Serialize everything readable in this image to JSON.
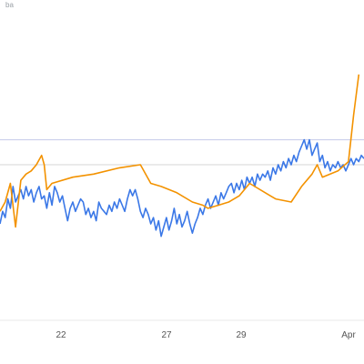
{
  "chart_data": {
    "type": "line",
    "title": "",
    "top_left_fragment": "ba",
    "xlabel": "",
    "ylabel": "",
    "x_tick_labels": [
      "22",
      "27",
      "29",
      "Apr"
    ],
    "grid": true,
    "reference_lines": [
      {
        "color": "#c5cae9",
        "value": 0.58
      },
      {
        "color": "#d6d6d6",
        "value": 0.5
      }
    ],
    "series": [
      {
        "color": "#3b78e7",
        "values": [
          [
            0,
            0.31
          ],
          [
            0.5,
            0.35
          ],
          [
            1,
            0.33
          ],
          [
            1.5,
            0.39
          ],
          [
            2,
            0.36
          ],
          [
            2.5,
            0.43
          ],
          [
            3,
            0.38
          ],
          [
            3.5,
            0.4
          ],
          [
            4,
            0.42
          ],
          [
            4.5,
            0.39
          ],
          [
            5,
            0.43
          ],
          [
            5.5,
            0.4
          ],
          [
            6,
            0.42
          ],
          [
            6.5,
            0.38
          ],
          [
            7,
            0.41
          ],
          [
            7.5,
            0.43
          ],
          [
            8,
            0.39
          ],
          [
            8.5,
            0.4
          ],
          [
            9,
            0.36
          ],
          [
            9.5,
            0.41
          ],
          [
            10,
            0.37
          ],
          [
            10.5,
            0.43
          ],
          [
            11,
            0.41
          ],
          [
            11.5,
            0.38
          ],
          [
            12,
            0.4
          ],
          [
            12.5,
            0.36
          ],
          [
            13,
            0.32
          ],
          [
            13.5,
            0.36
          ],
          [
            14,
            0.38
          ],
          [
            14.5,
            0.35
          ],
          [
            15,
            0.37
          ],
          [
            15.5,
            0.39
          ],
          [
            16,
            0.38
          ],
          [
            16.5,
            0.34
          ],
          [
            17,
            0.36
          ],
          [
            17.5,
            0.33
          ],
          [
            18,
            0.35
          ],
          [
            18.5,
            0.32
          ],
          [
            19,
            0.38
          ],
          [
            19.5,
            0.36
          ],
          [
            20,
            0.35
          ],
          [
            20.5,
            0.34
          ],
          [
            21,
            0.37
          ],
          [
            21.5,
            0.35
          ],
          [
            22,
            0.38
          ],
          [
            22.5,
            0.36
          ],
          [
            23,
            0.39
          ],
          [
            23.5,
            0.37
          ],
          [
            24,
            0.35
          ],
          [
            24.5,
            0.39
          ],
          [
            25,
            0.42
          ],
          [
            25.5,
            0.4
          ],
          [
            26,
            0.42
          ],
          [
            26.5,
            0.39
          ],
          [
            27,
            0.35
          ],
          [
            27.5,
            0.33
          ],
          [
            28,
            0.36
          ],
          [
            28.5,
            0.34
          ],
          [
            29,
            0.31
          ],
          [
            29.5,
            0.33
          ],
          [
            30,
            0.29
          ],
          [
            30.5,
            0.32
          ],
          [
            31,
            0.27
          ],
          [
            31.5,
            0.3
          ],
          [
            32,
            0.33
          ],
          [
            32.5,
            0.29
          ],
          [
            33,
            0.32
          ],
          [
            33.5,
            0.36
          ],
          [
            34,
            0.31
          ],
          [
            34.5,
            0.34
          ],
          [
            35,
            0.3
          ],
          [
            35.5,
            0.32
          ],
          [
            36,
            0.35
          ],
          [
            36.5,
            0.31
          ],
          [
            37,
            0.28
          ],
          [
            37.5,
            0.31
          ],
          [
            38,
            0.33
          ],
          [
            38.5,
            0.36
          ],
          [
            39,
            0.34
          ],
          [
            39.5,
            0.37
          ],
          [
            40,
            0.39
          ],
          [
            40.5,
            0.36
          ],
          [
            41,
            0.38
          ],
          [
            41.5,
            0.4
          ],
          [
            42,
            0.37
          ],
          [
            42.5,
            0.41
          ],
          [
            43,
            0.39
          ],
          [
            43.5,
            0.41
          ],
          [
            44,
            0.43
          ],
          [
            44.5,
            0.44
          ],
          [
            45,
            0.41
          ],
          [
            45.5,
            0.44
          ],
          [
            46,
            0.42
          ],
          [
            46.5,
            0.45
          ],
          [
            47,
            0.42
          ],
          [
            47.5,
            0.46
          ],
          [
            48,
            0.44
          ],
          [
            48.5,
            0.46
          ],
          [
            49,
            0.43
          ],
          [
            49.5,
            0.47
          ],
          [
            50,
            0.45
          ],
          [
            50.5,
            0.47
          ],
          [
            51,
            0.46
          ],
          [
            51.5,
            0.48
          ],
          [
            52,
            0.45
          ],
          [
            52.5,
            0.49
          ],
          [
            53,
            0.47
          ],
          [
            53.5,
            0.5
          ],
          [
            54,
            0.48
          ],
          [
            54.5,
            0.51
          ],
          [
            55,
            0.49
          ],
          [
            55.5,
            0.52
          ],
          [
            56,
            0.5
          ],
          [
            56.5,
            0.53
          ],
          [
            57,
            0.51
          ],
          [
            57.5,
            0.54
          ],
          [
            58,
            0.56
          ],
          [
            58.5,
            0.58
          ],
          [
            59,
            0.55
          ],
          [
            59.5,
            0.58
          ],
          [
            60,
            0.53
          ],
          [
            60.5,
            0.55
          ],
          [
            61,
            0.57
          ],
          [
            61.5,
            0.51
          ],
          [
            62,
            0.53
          ],
          [
            62.5,
            0.49
          ],
          [
            63,
            0.51
          ],
          [
            63.5,
            0.48
          ],
          [
            64,
            0.5
          ],
          [
            64.5,
            0.49
          ],
          [
            65,
            0.51
          ],
          [
            65.5,
            0.49
          ],
          [
            66,
            0.5
          ],
          [
            66.5,
            0.48
          ],
          [
            67,
            0.5
          ],
          [
            67.5,
            0.52
          ],
          [
            68,
            0.5
          ],
          [
            68.5,
            0.52
          ],
          [
            69,
            0.51
          ],
          [
            69.5,
            0.53
          ],
          [
            70,
            0.52
          ]
        ]
      },
      {
        "color": "#f39200",
        "values": [
          [
            0,
            0.35
          ],
          [
            1,
            0.38
          ],
          [
            2,
            0.44
          ],
          [
            3,
            0.3
          ],
          [
            4,
            0.45
          ],
          [
            5,
            0.47
          ],
          [
            6,
            0.48
          ],
          [
            7,
            0.5
          ],
          [
            8,
            0.53
          ],
          [
            8.5,
            0.5
          ],
          [
            9,
            0.42
          ],
          [
            10,
            0.44
          ],
          [
            14,
            0.46
          ],
          [
            18,
            0.47
          ],
          [
            23,
            0.49
          ],
          [
            27,
            0.5
          ],
          [
            28,
            0.47
          ],
          [
            29,
            0.44
          ],
          [
            31,
            0.43
          ],
          [
            34,
            0.41
          ],
          [
            37,
            0.38
          ],
          [
            39,
            0.37
          ],
          [
            40,
            0.36
          ],
          [
            42,
            0.37
          ],
          [
            44,
            0.38
          ],
          [
            46,
            0.4
          ],
          [
            48,
            0.44
          ],
          [
            52,
            0.4
          ],
          [
            53,
            0.39
          ],
          [
            56,
            0.38
          ],
          [
            58,
            0.43
          ],
          [
            60,
            0.47
          ],
          [
            61,
            0.5
          ],
          [
            62,
            0.46
          ],
          [
            65,
            0.48
          ],
          [
            67,
            0.51
          ],
          [
            68,
            0.66
          ],
          [
            69,
            0.79
          ]
        ]
      }
    ]
  }
}
